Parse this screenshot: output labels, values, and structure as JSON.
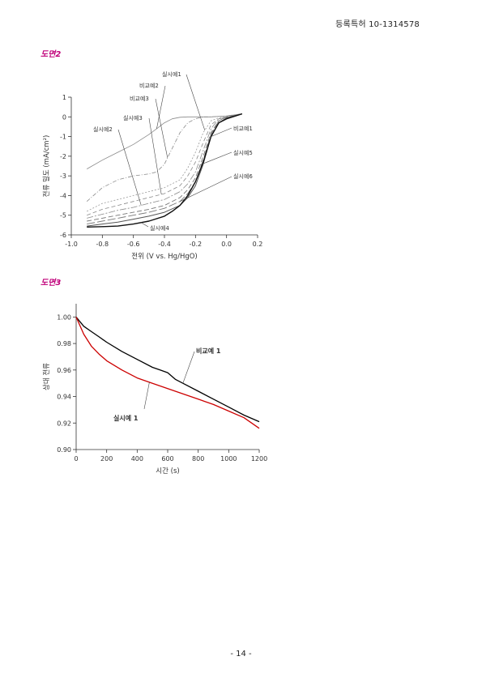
{
  "header": {
    "patent_number": "등록특허 10-1314578"
  },
  "footer": {
    "page": "- 14 -"
  },
  "figures": {
    "fig2_label": "도면2",
    "fig3_label": "도면3"
  },
  "chart_data": [
    {
      "type": "line",
      "xlabel": "전위 (V vs. Hg/HgO)",
      "ylabel": "전류 밀도 (mA/cm²)",
      "xlim": [
        -1.0,
        0.2
      ],
      "ylim": [
        -6,
        1
      ],
      "x_ticks": [
        "-1.0",
        "-0.8",
        "-0.6",
        "-0.4",
        "-0.2",
        "0.0",
        "0.2"
      ],
      "y_ticks": [
        "1",
        "0",
        "-1",
        "-2",
        "-3",
        "-4",
        "-5",
        "-6"
      ],
      "grid": false,
      "series": [
        {
          "name": "비교예2",
          "color": "#8a8a8a",
          "dash": "",
          "width": 0.8,
          "x": [
            -0.9,
            -0.8,
            -0.7,
            -0.6,
            -0.5,
            -0.45,
            -0.4,
            -0.35,
            -0.3,
            -0.25,
            -0.2,
            -0.15,
            -0.1,
            0.0,
            0.1
          ],
          "y": [
            -2.65,
            -2.2,
            -1.8,
            -1.4,
            -0.9,
            -0.6,
            -0.3,
            -0.1,
            -0.02,
            0,
            0,
            0,
            0,
            0.05,
            0.15
          ]
        },
        {
          "name": "비교예3",
          "color": "#8a8a8a",
          "dash": "5 2 1 2",
          "width": 0.8,
          "x": [
            -0.9,
            -0.8,
            -0.7,
            -0.6,
            -0.5,
            -0.45,
            -0.4,
            -0.35,
            -0.3,
            -0.25,
            -0.2,
            -0.15,
            -0.1,
            0.0,
            0.1
          ],
          "y": [
            -4.3,
            -3.6,
            -3.2,
            -3.0,
            -2.9,
            -2.8,
            -2.4,
            -1.6,
            -0.8,
            -0.3,
            -0.1,
            0,
            0,
            0.05,
            0.15
          ]
        },
        {
          "name": "실시예1",
          "color": "#9a9a9a",
          "dash": "2 2",
          "width": 0.8,
          "x": [
            -0.9,
            -0.8,
            -0.7,
            -0.6,
            -0.5,
            -0.4,
            -0.3,
            -0.25,
            -0.2,
            -0.15,
            -0.1,
            -0.05,
            0.0,
            0.1
          ],
          "y": [
            -4.8,
            -4.4,
            -4.2,
            -4.0,
            -3.8,
            -3.6,
            -3.2,
            -2.6,
            -1.8,
            -0.8,
            -0.2,
            -0.05,
            0,
            0.15
          ]
        },
        {
          "name": "실시예3",
          "color": "#8a8a8a",
          "dash": "5 3",
          "width": 0.8,
          "x": [
            -0.9,
            -0.8,
            -0.7,
            -0.6,
            -0.5,
            -0.4,
            -0.3,
            -0.25,
            -0.2,
            -0.15,
            -0.1,
            -0.05,
            0.0,
            0.1
          ],
          "y": [
            -5.0,
            -4.7,
            -4.5,
            -4.3,
            -4.1,
            -3.9,
            -3.5,
            -3.0,
            -2.3,
            -1.3,
            -0.4,
            -0.1,
            0,
            0.15
          ]
        },
        {
          "name": "실시예2",
          "color": "#8a8a8a",
          "dash": "8 2 2 2",
          "width": 0.8,
          "x": [
            -0.9,
            -0.8,
            -0.7,
            -0.6,
            -0.5,
            -0.4,
            -0.3,
            -0.25,
            -0.2,
            -0.15,
            -0.1,
            -0.05,
            0.0,
            0.1
          ],
          "y": [
            -5.15,
            -4.95,
            -4.75,
            -4.6,
            -4.4,
            -4.2,
            -3.8,
            -3.4,
            -2.8,
            -1.7,
            -0.6,
            -0.1,
            0,
            0.15
          ]
        },
        {
          "name": "실시예5",
          "color": "#777777",
          "dash": "6 3",
          "width": 0.9,
          "x": [
            -0.9,
            -0.8,
            -0.7,
            -0.6,
            -0.5,
            -0.4,
            -0.3,
            -0.25,
            -0.2,
            -0.15,
            -0.1,
            -0.05,
            0.0,
            0.1
          ],
          "y": [
            -5.3,
            -5.15,
            -5.0,
            -4.85,
            -4.7,
            -4.5,
            -4.1,
            -3.7,
            -3.1,
            -2.0,
            -0.8,
            -0.2,
            0,
            0.15
          ]
        },
        {
          "name": "실시예6",
          "color": "#777777",
          "dash": "10 3",
          "width": 0.9,
          "x": [
            -0.9,
            -0.8,
            -0.7,
            -0.6,
            -0.5,
            -0.4,
            -0.3,
            -0.25,
            -0.2,
            -0.15,
            -0.1,
            -0.05,
            0.0,
            0.1
          ],
          "y": [
            -5.45,
            -5.3,
            -5.15,
            -5.0,
            -4.85,
            -4.65,
            -4.3,
            -3.9,
            -3.3,
            -2.2,
            -0.9,
            -0.2,
            0,
            0.15
          ]
        },
        {
          "name": "비교예1",
          "color": "#555555",
          "dash": "",
          "width": 1.0,
          "x": [
            -0.9,
            -0.8,
            -0.7,
            -0.6,
            -0.5,
            -0.4,
            -0.3,
            -0.25,
            -0.2,
            -0.15,
            -0.1,
            -0.05,
            0.0,
            0.1
          ],
          "y": [
            -5.55,
            -5.45,
            -5.35,
            -5.2,
            -5.05,
            -4.85,
            -4.5,
            -4.1,
            -3.5,
            -2.4,
            -1.0,
            -0.3,
            -0.05,
            0.15
          ]
        },
        {
          "name": "실시예4",
          "color": "#111111",
          "dash": "",
          "width": 1.4,
          "x": [
            -0.9,
            -0.8,
            -0.7,
            -0.6,
            -0.5,
            -0.4,
            -0.35,
            -0.3,
            -0.25,
            -0.2,
            -0.15,
            -0.1,
            -0.05,
            0.0,
            0.1
          ],
          "y": [
            -5.6,
            -5.58,
            -5.55,
            -5.45,
            -5.3,
            -5.05,
            -4.8,
            -4.5,
            -4.0,
            -3.3,
            -2.3,
            -1.0,
            -0.3,
            -0.1,
            0.15
          ]
        }
      ],
      "annotations": [
        {
          "text": "실시예1",
          "series": "실시예1"
        },
        {
          "text": "비교예2",
          "series": "비교예2"
        },
        {
          "text": "비교예3",
          "series": "비교예3"
        },
        {
          "text": "실시예3",
          "series": "실시예3"
        },
        {
          "text": "실시예2",
          "series": "실시예2"
        },
        {
          "text": "비교예1",
          "series": "비교예1"
        },
        {
          "text": "실시예5",
          "series": "실시예5"
        },
        {
          "text": "실시예6",
          "series": "실시예6"
        },
        {
          "text": "실시예4",
          "series": "실시예4"
        }
      ]
    },
    {
      "type": "line",
      "xlabel": "시간 (s)",
      "ylabel": "상대 전류",
      "xlim": [
        0,
        1200
      ],
      "ylim": [
        0.9,
        1.01
      ],
      "x_ticks": [
        "0",
        "200",
        "400",
        "600",
        "800",
        "1000",
        "1200"
      ],
      "y_ticks": [
        "1.00",
        "0.98",
        "0.96",
        "0.94",
        "0.92",
        "0.90"
      ],
      "grid": false,
      "series": [
        {
          "name": "비교예 1",
          "color": "#000000",
          "x": [
            0,
            50,
            100,
            150,
            200,
            300,
            400,
            500,
            550,
            600,
            650,
            700,
            800,
            900,
            1000,
            1100,
            1200
          ],
          "y": [
            1.0,
            0.993,
            0.989,
            0.985,
            0.981,
            0.974,
            0.968,
            0.962,
            0.96,
            0.958,
            0.953,
            0.95,
            0.944,
            0.938,
            0.932,
            0.926,
            0.921
          ]
        },
        {
          "name": "실시예 1",
          "color": "#cc0000",
          "x": [
            0,
            50,
            100,
            150,
            200,
            300,
            400,
            500,
            600,
            700,
            800,
            900,
            1000,
            1100,
            1200
          ],
          "y": [
            1.0,
            0.987,
            0.978,
            0.972,
            0.967,
            0.96,
            0.954,
            0.95,
            0.946,
            0.942,
            0.938,
            0.934,
            0.929,
            0.924,
            0.916
          ]
        }
      ],
      "annotations": [
        {
          "text": "비교예 1",
          "series": "비교예 1"
        },
        {
          "text": "실시예 1",
          "series": "실시예 1"
        }
      ]
    }
  ]
}
